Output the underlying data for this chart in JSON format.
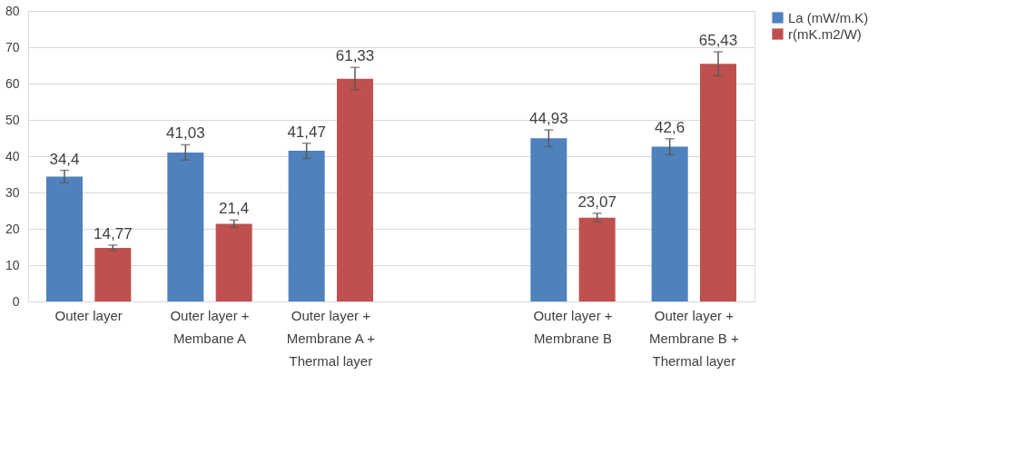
{
  "chart_data": {
    "type": "bar",
    "categories": [
      "Outer layer",
      "Outer layer + Membane A",
      "Outer layer + Membrane A + Thermal layer",
      null,
      "Outer layer + Membrane B",
      "Outer layer + Membrane B + Thermal layer"
    ],
    "series": [
      {
        "name": "La (mW/m.K)",
        "color": "#4f81bd",
        "values": [
          34.4,
          41.03,
          41.47,
          null,
          44.93,
          42.6
        ],
        "errors": [
          1.7,
          2.1,
          2.1,
          null,
          2.3,
          2.2
        ],
        "value_labels": [
          "34,4",
          "41,03",
          "41,47",
          null,
          "44,93",
          "42,6"
        ]
      },
      {
        "name": "r(mK.m2/W)",
        "color": "#c0504d",
        "values": [
          14.77,
          21.4,
          61.33,
          null,
          23.07,
          65.43
        ],
        "errors": [
          0.75,
          1.0,
          3.1,
          null,
          1.2,
          3.3
        ],
        "value_labels": [
          "14,77",
          "21,4",
          "61,33",
          null,
          "23,07",
          "65,43"
        ]
      }
    ],
    "ylim": [
      0,
      80
    ],
    "yticks": [
      0,
      10,
      20,
      30,
      40,
      50,
      60,
      70,
      80
    ],
    "grid": "y",
    "legend": "right"
  }
}
